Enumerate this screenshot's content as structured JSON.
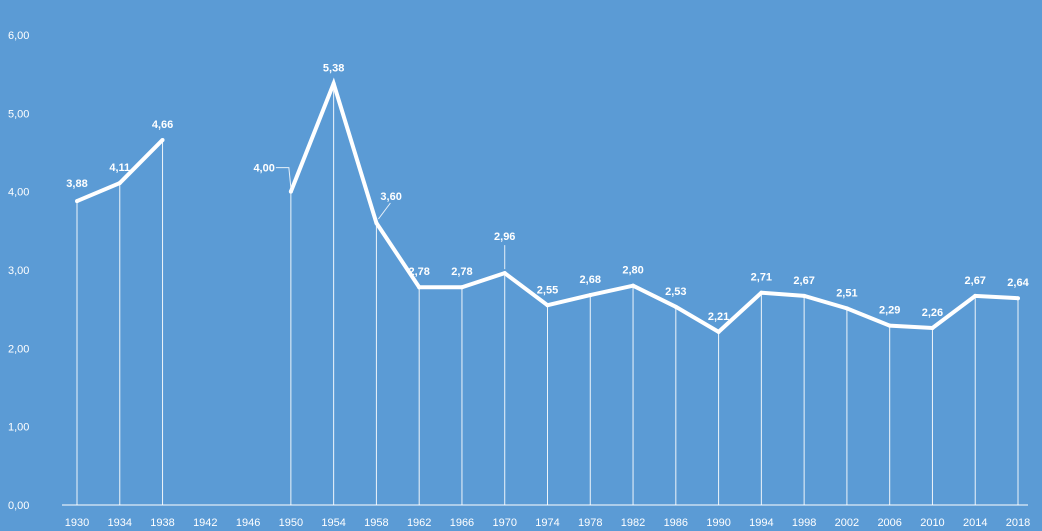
{
  "chart_data": {
    "type": "line",
    "title": "",
    "xlabel": "",
    "ylabel": "",
    "ylim": [
      0,
      6
    ],
    "grid": false,
    "legend": "none",
    "y_ticks": [
      "0,00",
      "1,00",
      "2,00",
      "3,00",
      "4,00",
      "5,00",
      "6,00"
    ],
    "y_tick_values": [
      0,
      1,
      2,
      3,
      4,
      5,
      6
    ],
    "categories": [
      "1930",
      "1934",
      "1938",
      "1942",
      "1946",
      "1950",
      "1954",
      "1958",
      "1962",
      "1966",
      "1970",
      "1974",
      "1978",
      "1982",
      "1986",
      "1990",
      "1994",
      "1998",
      "2002",
      "2006",
      "2010",
      "2014",
      "2018"
    ],
    "series": [
      {
        "values": [
          3.88,
          4.11,
          4.66,
          null,
          null,
          4.0,
          5.38,
          3.6,
          2.78,
          2.78,
          2.96,
          2.55,
          2.68,
          2.8,
          2.53,
          2.21,
          2.71,
          2.67,
          2.51,
          2.29,
          2.26,
          2.67,
          2.64
        ],
        "labels": [
          "3,88",
          "4,11",
          "4,66",
          "",
          "",
          "4,00",
          "5,38",
          "3,60",
          "2,78",
          "2,78",
          "2,96",
          "2,55",
          "2,68",
          "2,80",
          "2,53",
          "2,21",
          "2,71",
          "2,67",
          "2,51",
          "2,29",
          "2,26",
          "2,67",
          "2,64"
        ]
      }
    ],
    "colors": {
      "background": "#5b9bd5",
      "line": "#ffffff",
      "text": "#ffffff"
    }
  }
}
